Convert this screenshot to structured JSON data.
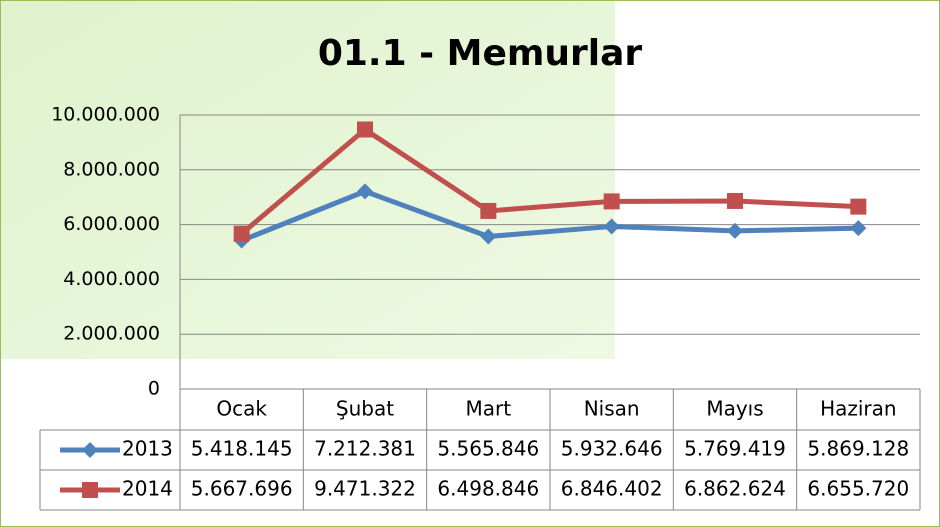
{
  "chart_data": {
    "type": "line",
    "title": "01.1 - Memurlar",
    "categories": [
      "Ocak",
      "Şubat",
      "Mart",
      "Nisan",
      "Mayıs",
      "Haziran"
    ],
    "series": [
      {
        "name": "2013",
        "color": "#4f81bd",
        "marker": "diamond",
        "values": [
          5418145,
          7212381,
          5565846,
          5932646,
          5769419,
          5869128
        ],
        "value_labels": [
          "5.418.145",
          "7.212.381",
          "5.565.846",
          "5.932.646",
          "5.769.419",
          "5.869.128"
        ]
      },
      {
        "name": "2014",
        "color": "#c0504d",
        "marker": "square",
        "values": [
          5667696,
          9471322,
          6498846,
          6846402,
          6862624,
          6655720
        ],
        "value_labels": [
          "5.667.696",
          "9.471.322",
          "6.498.846",
          "6.846.402",
          "6.862.624",
          "6.655.720"
        ]
      }
    ],
    "ylim": [
      0,
      10000000
    ],
    "yticks": [
      0,
      {
        "value": 2000000,
        "label": "2.000.000"
      },
      {
        "value": 4000000,
        "label": "4.000.000"
      },
      {
        "value": 6000000,
        "label": "6.000.000"
      },
      {
        "value": 8000000,
        "label": "8.000.000"
      },
      {
        "value": 10000000,
        "label": "10.000.000"
      }
    ],
    "grid": true
  }
}
